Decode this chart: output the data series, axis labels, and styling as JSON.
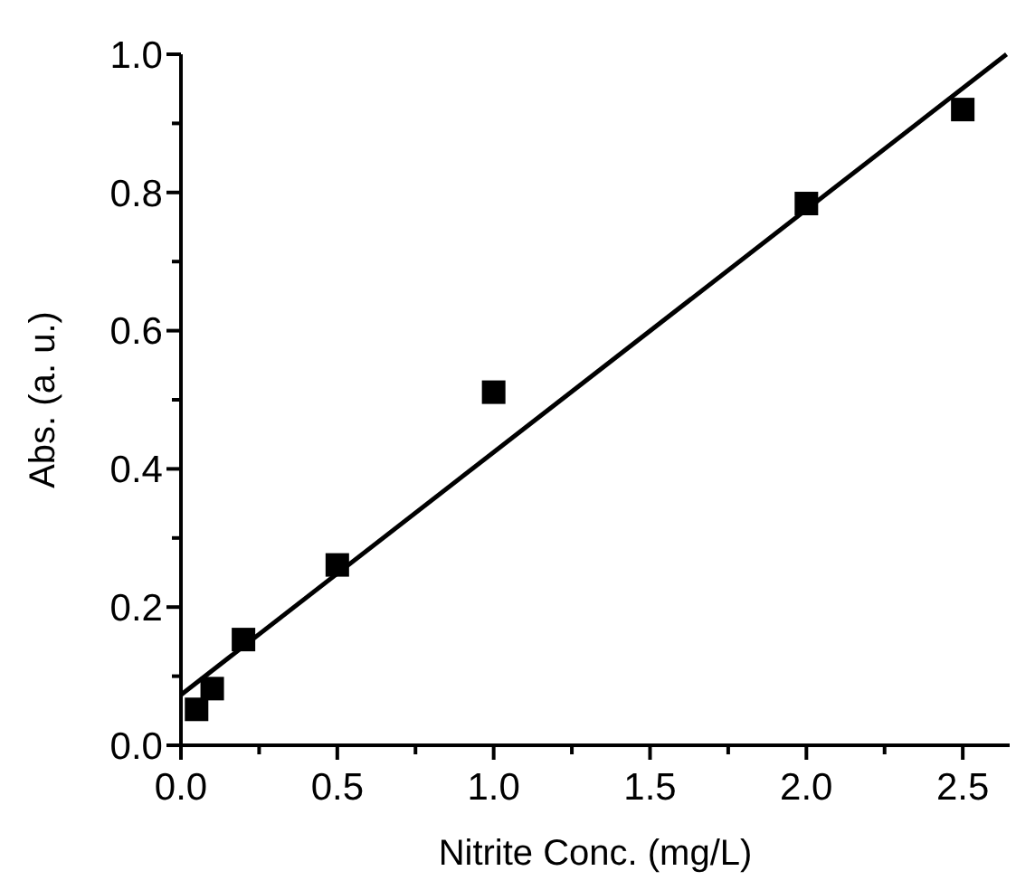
{
  "chart_data": {
    "type": "scatter",
    "xlabel": "Nitrite Conc. (mg/L)",
    "ylabel": "Abs. (a. u.)",
    "xlim": [
      0,
      2.65
    ],
    "ylim": [
      0,
      1.0
    ],
    "xticks": [
      {
        "value": 0,
        "label": "0.0"
      },
      {
        "value": 0.25,
        "label": null
      },
      {
        "value": 0.5,
        "label": "0.5"
      },
      {
        "value": 0.75,
        "label": null
      },
      {
        "value": 1,
        "label": "1.0"
      },
      {
        "value": 1.25,
        "label": null
      },
      {
        "value": 1.5,
        "label": "1.5"
      },
      {
        "value": 1.75,
        "label": null
      },
      {
        "value": 2,
        "label": "2.0"
      },
      {
        "value": 2.25,
        "label": null
      },
      {
        "value": 2.5,
        "label": "2.5"
      }
    ],
    "yticks": [
      {
        "value": 0,
        "label": "0.0"
      },
      {
        "value": 0.1,
        "label": null
      },
      {
        "value": 0.2,
        "label": "0.2"
      },
      {
        "value": 0.3,
        "label": null
      },
      {
        "value": 0.4,
        "label": "0.4"
      },
      {
        "value": 0.5,
        "label": null
      },
      {
        "value": 0.6,
        "label": "0.6"
      },
      {
        "value": 0.7,
        "label": null
      },
      {
        "value": 0.8,
        "label": "0.8"
      },
      {
        "value": 0.9,
        "label": null
      },
      {
        "value": 1,
        "label": "1.0"
      }
    ],
    "grid": false,
    "series": [
      {
        "color": "#000000",
        "marker": "square",
        "x": [
          0.05,
          0.1,
          0.2,
          0.5,
          1.0,
          2.0,
          2.5
        ],
        "values": [
          0.052,
          0.082,
          0.153,
          0.261,
          0.511,
          0.784,
          0.92
        ]
      },
      {
        "type": "line",
        "color": "#000000",
        "marker": "none",
        "line_style": "solid",
        "x": [
          0,
          2.64
        ],
        "values": [
          0.073,
          1.0
        ]
      }
    ]
  }
}
